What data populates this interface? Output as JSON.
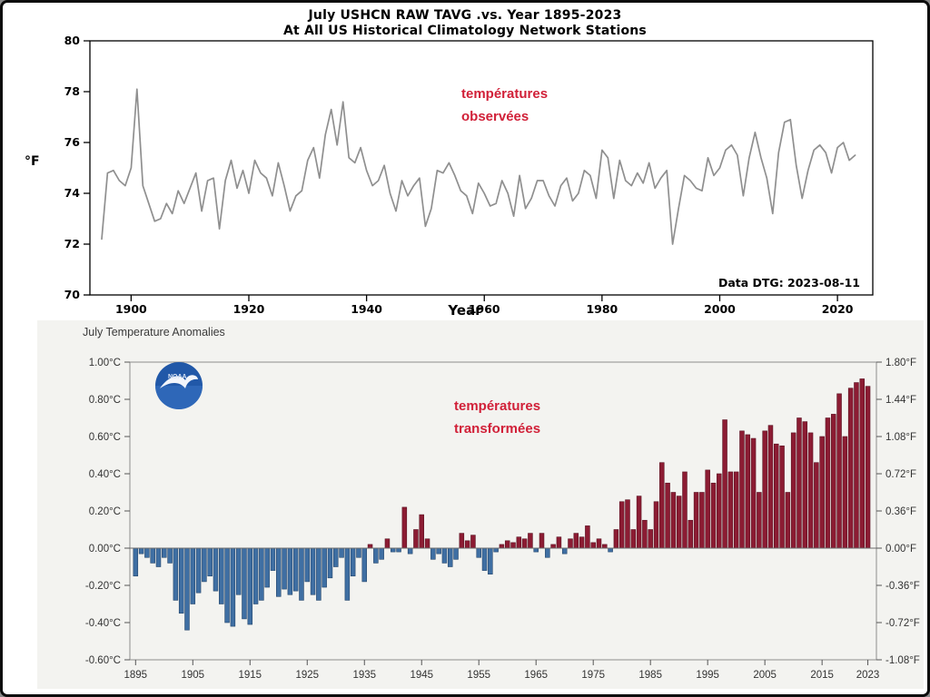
{
  "page": {
    "background": "#ffffff",
    "frame_color": "#0b0b0b",
    "annotation_color": "#d12038"
  },
  "top_chart": {
    "title_line1": "July USHCN RAW TAVG .vs. Year 1895-2023",
    "title_line2": "At All US Historical Climatology Network Stations",
    "y_axis_unit": "°F",
    "x_axis_label": "Year",
    "annotation_line1": "températures",
    "annotation_line2": "observées",
    "data_dtg": "Data DTG: 2023-08-11",
    "line_color": "#8f8f8f"
  },
  "bottom_chart": {
    "title": "July Temperature Anomalies",
    "annotation_line1": "températures",
    "annotation_line2": "transformées",
    "logo": "noaa-logo",
    "positive_color": "#8c1c33",
    "negative_color": "#3f6fa3",
    "positive_edge": "#5a1322",
    "negative_edge": "#25466b"
  },
  "chart_data": [
    {
      "type": "line",
      "title": "July USHCN RAW TAVG .vs. Year 1895-2023",
      "subtitle": "At All US Historical Climatology Network Stations",
      "xlabel": "Year",
      "ylabel": "°F",
      "xlim": [
        1893,
        2026
      ],
      "ylim": [
        70,
        80
      ],
      "x_ticks": [
        1900,
        1920,
        1940,
        1960,
        1980,
        2000,
        2020
      ],
      "y_ticks": [
        70,
        72,
        74,
        76,
        78,
        80
      ],
      "x_start": 1895,
      "legend": "none",
      "grid": false,
      "line_color": "#8f8f8f",
      "values": [
        72.2,
        74.8,
        74.9,
        74.5,
        74.3,
        75.0,
        78.1,
        74.3,
        73.6,
        72.9,
        73.0,
        73.6,
        73.2,
        74.1,
        73.6,
        74.2,
        74.8,
        73.3,
        74.5,
        74.6,
        72.6,
        74.5,
        75.3,
        74.2,
        74.9,
        74.0,
        75.3,
        74.8,
        74.6,
        73.9,
        75.2,
        74.3,
        73.3,
        73.9,
        74.1,
        75.3,
        75.8,
        74.6,
        76.3,
        77.3,
        75.9,
        77.6,
        75.4,
        75.2,
        75.8,
        74.9,
        74.3,
        74.5,
        75.1,
        74.0,
        73.3,
        74.5,
        73.9,
        74.3,
        74.6,
        72.7,
        73.4,
        74.9,
        74.8,
        75.2,
        74.7,
        74.1,
        73.9,
        73.2,
        74.4,
        74.0,
        73.5,
        73.6,
        74.5,
        74.0,
        73.1,
        74.7,
        73.4,
        73.8,
        74.5,
        74.5,
        73.9,
        73.5,
        74.3,
        74.6,
        73.7,
        74.0,
        74.9,
        74.7,
        73.8,
        75.7,
        75.4,
        73.8,
        75.3,
        74.5,
        74.3,
        74.8,
        74.4,
        75.2,
        74.2,
        74.6,
        74.9,
        72.0,
        73.4,
        74.7,
        74.5,
        74.2,
        74.1,
        75.4,
        74.7,
        75.0,
        75.7,
        75.9,
        75.5,
        73.9,
        75.4,
        76.4,
        75.4,
        74.6,
        73.2,
        75.6,
        76.8,
        76.9,
        75.1,
        73.8,
        74.9,
        75.7,
        75.9,
        75.6,
        74.8,
        75.8,
        76.0,
        75.3,
        75.5
      ]
    },
    {
      "type": "bar",
      "title": "July Temperature Anomalies",
      "xlabel": "",
      "ylabel_left": "°C",
      "ylabel_right": "°F",
      "xlim": [
        1894,
        2024.5
      ],
      "ylim_c": [
        -0.6,
        1.0
      ],
      "x_ticks": [
        1895,
        1905,
        1915,
        1925,
        1935,
        1945,
        1955,
        1965,
        1975,
        1985,
        1995,
        2005,
        2015,
        2023
      ],
      "y_axis": {
        "values": [
          1.0,
          0.8,
          0.6,
          0.4,
          0.2,
          0.0,
          -0.2,
          -0.4,
          -0.6
        ],
        "labels_c": [
          "1.00°C",
          "0.80°C",
          "0.60°C",
          "0.40°C",
          "0.20°C",
          "0.00°C",
          "-0.20°C",
          "-0.40°C",
          "-0.60°C"
        ],
        "labels_f": [
          "1.80°F",
          "1.44°F",
          "1.08°F",
          "0.72°F",
          "0.36°F",
          "0.00°F",
          "-0.36°F",
          "-0.72°F",
          "-1.08°F"
        ]
      },
      "x_start": 1895,
      "grid": false,
      "values_c": [
        -0.15,
        -0.03,
        -0.05,
        -0.08,
        -0.1,
        -0.05,
        -0.08,
        -0.28,
        -0.35,
        -0.44,
        -0.3,
        -0.24,
        -0.18,
        -0.15,
        -0.23,
        -0.3,
        -0.4,
        -0.42,
        -0.25,
        -0.38,
        -0.41,
        -0.3,
        -0.28,
        -0.21,
        -0.12,
        -0.26,
        -0.22,
        -0.25,
        -0.23,
        -0.28,
        -0.18,
        -0.25,
        -0.28,
        -0.21,
        -0.16,
        -0.1,
        -0.05,
        -0.28,
        -0.15,
        -0.05,
        -0.18,
        0.02,
        -0.08,
        -0.06,
        0.05,
        -0.02,
        -0.02,
        0.22,
        -0.03,
        0.1,
        0.18,
        0.05,
        -0.06,
        -0.03,
        -0.08,
        -0.1,
        -0.06,
        0.08,
        0.04,
        0.07,
        -0.05,
        -0.12,
        -0.14,
        -0.02,
        0.02,
        0.04,
        0.03,
        0.06,
        0.05,
        0.08,
        -0.02,
        0.08,
        -0.05,
        0.02,
        0.06,
        -0.03,
        0.05,
        0.08,
        0.06,
        0.12,
        0.03,
        0.05,
        0.02,
        -0.02,
        0.1,
        0.25,
        0.26,
        0.1,
        0.28,
        0.15,
        0.1,
        0.25,
        0.46,
        0.35,
        0.3,
        0.28,
        0.41,
        0.15,
        0.3,
        0.3,
        0.42,
        0.35,
        0.4,
        0.69,
        0.41,
        0.41,
        0.63,
        0.61,
        0.59,
        0.3,
        0.63,
        0.66,
        0.56,
        0.55,
        0.3,
        0.62,
        0.7,
        0.68,
        0.62,
        0.46,
        0.6,
        0.7,
        0.72,
        0.83,
        0.6,
        0.86,
        0.89,
        0.91,
        0.87
      ]
    }
  ]
}
